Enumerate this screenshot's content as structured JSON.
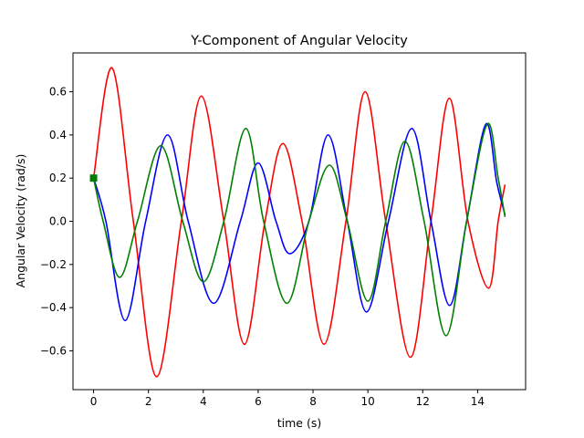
{
  "chart_data": {
    "type": "line",
    "title": "Y-Component of Angular Velocity",
    "xlabel": "time (s)",
    "ylabel": "Angular Velocity (rad/s)",
    "xlim": [
      -0.75,
      15.75
    ],
    "ylim": [
      -0.78,
      0.78
    ],
    "xticks": [
      0,
      2,
      4,
      6,
      8,
      10,
      12,
      14
    ],
    "xtick_labels": [
      "0",
      "2",
      "4",
      "6",
      "8",
      "10",
      "12",
      "14"
    ],
    "yticks": [
      -0.6,
      -0.4,
      -0.2,
      0.0,
      0.2,
      0.4,
      0.6
    ],
    "ytick_labels": [
      "−0.6",
      "−0.4",
      "−0.2",
      "0.0",
      "0.2",
      "0.4",
      "0.6"
    ],
    "grid": false,
    "legend": "none",
    "series": [
      {
        "color": "#ff0000",
        "x": [
          0,
          0.68,
          1.45,
          2.3,
          3.2,
          3.93,
          4.75,
          5.5,
          6.25,
          6.9,
          7.6,
          8.4,
          9.2,
          9.9,
          10.65,
          11.55,
          12.3,
          12.97,
          13.65,
          14.4,
          14.75,
          15.0
        ],
        "y": [
          0.2,
          0.71,
          0.0,
          -0.72,
          0.0,
          0.58,
          0.0,
          -0.57,
          0.0,
          0.36,
          0.0,
          -0.57,
          0.0,
          0.6,
          0.0,
          -0.63,
          0.0,
          0.57,
          0.0,
          -0.31,
          0.0,
          0.17
        ]
      },
      {
        "color": "#0000ff",
        "x": [
          0,
          0.45,
          1.15,
          1.9,
          2.7,
          3.45,
          4.38,
          5.35,
          6.0,
          6.65,
          7.15,
          7.85,
          8.55,
          9.25,
          9.95,
          10.75,
          11.6,
          12.3,
          12.98,
          13.6,
          14.3,
          14.7,
          15.0
        ],
        "y": [
          0.2,
          0.0,
          -0.46,
          0.0,
          0.4,
          0.0,
          -0.38,
          0.0,
          0.27,
          0.0,
          -0.15,
          0.0,
          0.4,
          0.0,
          -0.42,
          0.0,
          0.43,
          0.0,
          -0.39,
          0.0,
          0.45,
          0.18,
          0.03
        ]
      },
      {
        "color": "#008000",
        "x": [
          0,
          0.35,
          0.95,
          1.6,
          2.45,
          3.25,
          4.0,
          4.75,
          5.55,
          6.2,
          7.05,
          7.85,
          8.6,
          9.25,
          10.0,
          10.65,
          11.35,
          12.05,
          12.85,
          13.6,
          14.35,
          14.75,
          15.0
        ],
        "y": [
          0.2,
          0.0,
          -0.26,
          0.0,
          0.35,
          0.0,
          -0.28,
          0.0,
          0.43,
          0.0,
          -0.38,
          0.0,
          0.26,
          0.0,
          -0.37,
          0.0,
          0.37,
          0.0,
          -0.53,
          0.0,
          0.45,
          0.2,
          0.02
        ]
      }
    ],
    "marker": {
      "x": 0,
      "y": 0.2,
      "color": "#008000",
      "shape": "square"
    }
  }
}
